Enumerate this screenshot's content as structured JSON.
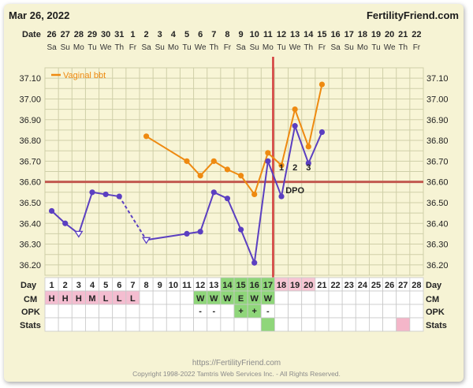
{
  "header": {
    "date": "Mar 26, 2022",
    "site": "FertilityFriend.com"
  },
  "footer": {
    "url": "https://FertilityFriend.com",
    "copyright": "Copyright 1998-2022 Tamtris Web Services Inc. - All Rights Reserved."
  },
  "rows": {
    "date_label": "Date",
    "day_label": "Day",
    "cm_label": "CM",
    "opk_label": "OPK",
    "stats_label": "Stats"
  },
  "dates": [
    "26",
    "27",
    "28",
    "29",
    "30",
    "31",
    "1",
    "2",
    "3",
    "4",
    "5",
    "6",
    "7",
    "8",
    "9",
    "10",
    "11",
    "12",
    "13",
    "14",
    "15",
    "16",
    "17",
    "18",
    "19",
    "20",
    "21",
    "22"
  ],
  "weekdays": [
    "Sa",
    "Su",
    "Mo",
    "Tu",
    "We",
    "Th",
    "Fr",
    "Sa",
    "Su",
    "Mo",
    "Tu",
    "We",
    "Th",
    "Fr",
    "Sa",
    "Su",
    "Mo",
    "Tu",
    "We",
    "Th",
    "Fr",
    "Sa",
    "Su",
    "Mo",
    "Tu",
    "We",
    "Th",
    "Fr"
  ],
  "colors": {
    "bbt_line": "#5b3fc1",
    "vaginal_line": "#ee8a11",
    "coverline": "#c2594f",
    "ovulation_line": "#d23a3a",
    "grid": "#cfcfa8",
    "plot_bg": "#f8f5d6",
    "cm_pink": "#f4bdd0",
    "cm_green": "#8fd67a",
    "stats_pink": "#f4b6c9",
    "dpo_day_pink": "#f7c6d4",
    "table_bg": "#ffffff",
    "table_grid": "#c8c8c8"
  },
  "chart_data": {
    "type": "line",
    "title": "",
    "xlabel": "Day",
    "ylabel": "",
    "ylim": [
      36.15,
      37.15
    ],
    "yticks": [
      "36.20",
      "36.30",
      "36.40",
      "36.50",
      "36.60",
      "36.70",
      "36.80",
      "36.90",
      "37.00",
      "37.10"
    ],
    "days": [
      1,
      2,
      3,
      4,
      5,
      6,
      7,
      8,
      9,
      10,
      11,
      12,
      13,
      14,
      15,
      16,
      17,
      18,
      19,
      20,
      21,
      22,
      23,
      24,
      25,
      26,
      27,
      28
    ],
    "legend": {
      "label": "Vaginal bbt",
      "position": "top-left"
    },
    "coverline": 36.6,
    "ovulation_day": 17,
    "dpo_labels": [
      "1",
      "2",
      "3"
    ],
    "dpo_text": "DPO",
    "series": [
      {
        "name": "",
        "values": [
          36.46,
          36.4,
          36.35,
          36.55,
          36.54,
          36.53,
          null,
          36.32,
          null,
          null,
          36.35,
          36.36,
          36.55,
          36.52,
          36.37,
          36.21,
          36.7,
          36.53,
          36.87,
          36.69,
          36.84,
          null,
          null,
          null,
          null,
          null,
          null,
          null
        ],
        "hollow_days": [
          3,
          8
        ],
        "dashed_segments": [
          [
            6,
            8
          ]
        ]
      },
      {
        "name": "Vaginal bbt",
        "values": [
          null,
          null,
          null,
          null,
          null,
          null,
          null,
          36.82,
          null,
          null,
          36.7,
          36.63,
          36.7,
          36.66,
          36.63,
          36.54,
          36.74,
          36.68,
          36.95,
          36.77,
          37.07,
          null,
          null,
          null,
          null,
          null,
          null,
          null
        ]
      }
    ]
  },
  "cm": [
    "H",
    "H",
    "H",
    "M",
    "L",
    "L",
    "L",
    "",
    "",
    "",
    "",
    "W",
    "W",
    "W",
    "E",
    "W",
    "W",
    "",
    "",
    "",
    "",
    "",
    "",
    "",
    "",
    "",
    "",
    ""
  ],
  "cm_green_days": [
    12,
    13,
    14,
    15,
    16,
    17
  ],
  "cm_pink_days": [
    1,
    2,
    3,
    4,
    5,
    6,
    7
  ],
  "opk": [
    "",
    "",
    "",
    "",
    "",
    "",
    "",
    "",
    "",
    "",
    "",
    "-",
    "-",
    "",
    "+",
    "+",
    "-",
    "",
    "",
    "",
    "",
    "",
    "",
    "",
    "",
    "",
    "",
    ""
  ],
  "opk_green_days": [
    15,
    16
  ],
  "stats_green_days": [
    17
  ],
  "stats_pink_days": [
    27
  ],
  "day_green_days": [
    14,
    15,
    16,
    17
  ],
  "day_pink_days": [
    18,
    19,
    20
  ]
}
